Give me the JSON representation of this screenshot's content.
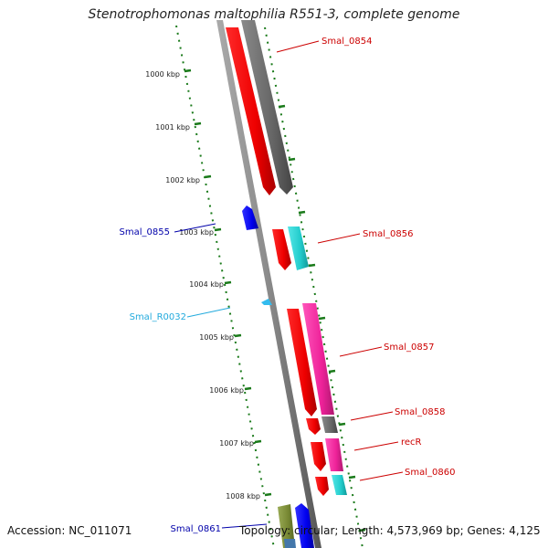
{
  "title": "Stenotrophomonas maltophilia R551-3, complete genome",
  "footer": {
    "accession": "Accession: NC_011071",
    "topology": "Topology: circular; Length: 4,573,969 bp; Genes: 4,125"
  },
  "colors": {
    "backbone": "#8a8a8a",
    "ruler": "#1a7a1a",
    "forward_label": "#cc0000",
    "reverse_label": "#0000aa",
    "rna_label": "#22aadd",
    "cds": "#ee0000",
    "gene_grey": "#666666",
    "cyan": "#22cccc",
    "magenta": "#ee2299",
    "blue": "#0000ee",
    "olive": "#778833"
  },
  "ruler": {
    "ticks": [
      "1000 kbp",
      "1001 kbp",
      "1002 kbp",
      "1003 kbp",
      "1004 kbp",
      "1005 kbp",
      "1006 kbp",
      "1007 kbp",
      "1008 kbp"
    ]
  },
  "genes": [
    {
      "label": "Smal_0854",
      "strand": "forward",
      "color": "red"
    },
    {
      "label": "Smal_0855",
      "strand": "reverse",
      "color": "blue"
    },
    {
      "label": "Smal_0856",
      "strand": "forward",
      "color": "red"
    },
    {
      "label": "Smal_R0032",
      "strand": "rna",
      "color": "cyan"
    },
    {
      "label": "Smal_0857",
      "strand": "forward",
      "color": "red"
    },
    {
      "label": "Smal_0858",
      "strand": "forward",
      "color": "red"
    },
    {
      "label": "recR",
      "strand": "forward",
      "color": "red"
    },
    {
      "label": "Smal_0860",
      "strand": "forward",
      "color": "red"
    },
    {
      "label": "Smal_0861",
      "strand": "reverse",
      "color": "blue"
    }
  ]
}
